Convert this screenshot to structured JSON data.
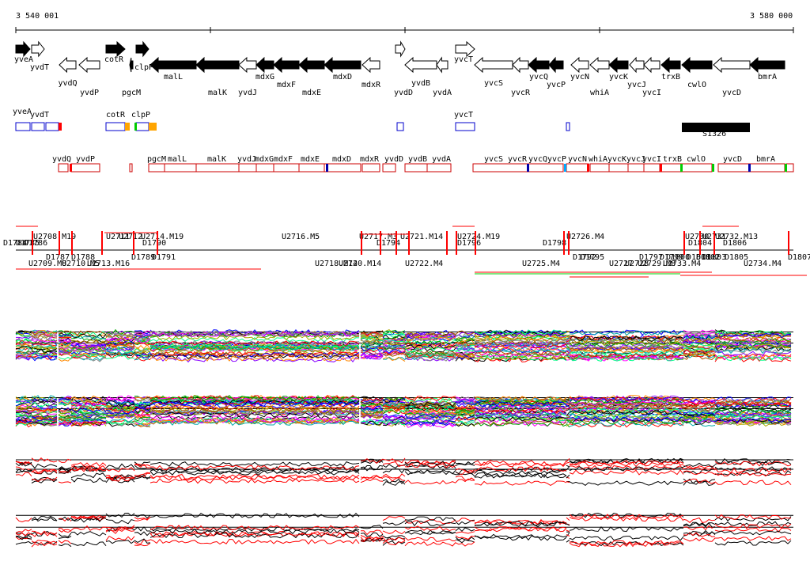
{
  "ruler": {
    "start_label": "3 540 001",
    "end_label": "3 580 000"
  },
  "colors": {
    "gene_fill": "#000000",
    "gene_outline": "#000000",
    "utr_box": "#0000cc",
    "tu_box": "#cc0000",
    "tss": "#ff0000",
    "orange": "#ffa500",
    "green": "#00cc00",
    "blue": "#0000aa",
    "cyan": "#00aaff",
    "trace_black": "#000000",
    "trace_red": "#ff0000"
  },
  "genes": [
    {
      "id": "yveA",
      "label": "yveA",
      "strand": "+",
      "filled": true
    },
    {
      "id": "yvdT",
      "label": "yvdT",
      "strand": "+",
      "filled": false
    },
    {
      "id": "yvdQ",
      "label": "yvdQ",
      "strand": "-",
      "filled": false
    },
    {
      "id": "yvdP",
      "label": "yvdP",
      "strand": "-",
      "filled": false
    },
    {
      "id": "cotR",
      "label": "cotR",
      "strand": "+",
      "filled": true
    },
    {
      "id": "clpP",
      "label": "clpP",
      "strand": "+",
      "filled": true
    },
    {
      "id": "malL",
      "label": "malL",
      "strand": "-",
      "filled": true
    },
    {
      "id": "pgcM",
      "label": "pgcM",
      "strand": "-",
      "filled": true
    },
    {
      "id": "malK",
      "label": "malK",
      "strand": "-",
      "filled": true
    },
    {
      "id": "yvdJ",
      "label": "yvdJ",
      "strand": "-",
      "filled": false
    },
    {
      "id": "mdxG",
      "label": "mdxG",
      "strand": "-",
      "filled": true
    },
    {
      "id": "mdxF",
      "label": "mdxF",
      "strand": "-",
      "filled": true
    },
    {
      "id": "mdxE",
      "label": "mdxE",
      "strand": "-",
      "filled": true
    },
    {
      "id": "mdxD",
      "label": "mdxD",
      "strand": "-",
      "filled": true
    },
    {
      "id": "mdxR",
      "label": "mdxR",
      "strand": "-",
      "filled": false
    },
    {
      "id": "yvdD",
      "label": "yvdD",
      "strand": "+",
      "filled": false
    },
    {
      "id": "yvdB",
      "label": "yvdB",
      "strand": "-",
      "filled": false
    },
    {
      "id": "yvdA",
      "label": "yvdA",
      "strand": "-",
      "filled": false
    },
    {
      "id": "yvcT",
      "label": "yvcT",
      "strand": "+",
      "filled": false
    },
    {
      "id": "yvcS",
      "label": "yvcS",
      "strand": "-",
      "filled": false
    },
    {
      "id": "yvcR",
      "label": "yvcR",
      "strand": "-",
      "filled": false
    },
    {
      "id": "yvcQ",
      "label": "yvcQ",
      "strand": "-",
      "filled": true
    },
    {
      "id": "yvcP",
      "label": "yvcP",
      "strand": "-",
      "filled": true
    },
    {
      "id": "yvcN",
      "label": "yvcN",
      "strand": "-",
      "filled": false
    },
    {
      "id": "whiA",
      "label": "whiA",
      "strand": "-",
      "filled": false
    },
    {
      "id": "yvcK",
      "label": "yvcK",
      "strand": "-",
      "filled": true
    },
    {
      "id": "yvcJ",
      "label": "yvcJ",
      "strand": "-",
      "filled": false
    },
    {
      "id": "yvcI",
      "label": "yvcI",
      "strand": "-",
      "filled": false
    },
    {
      "id": "trxB",
      "label": "trxB",
      "strand": "-",
      "filled": true
    },
    {
      "id": "cwlO",
      "label": "cwlO",
      "strand": "-",
      "filled": true
    },
    {
      "id": "yvcD",
      "label": "yvcD",
      "strand": "-",
      "filled": false
    },
    {
      "id": "bmrA",
      "label": "bmrA",
      "strand": "-",
      "filled": true
    }
  ],
  "utr_labels": [
    "yveA",
    "yvdT",
    "cotR",
    "clpP",
    "yvcT",
    "S1326"
  ],
  "tu_labels": [
    "yvdQ",
    "yvdP",
    "pgcM",
    "malL",
    "malK",
    "yvdJ",
    "mdxG",
    "mdxF",
    "mdxE",
    "mdxD",
    "mdxR",
    "yvdD",
    "yvdB",
    "yvdA",
    "yvcS",
    "yvcR",
    "yvcQ",
    "yvcP",
    "yvcN",
    "whiA",
    "yvcK",
    "yvcJ",
    "yvcI",
    "trxB",
    "cwlO",
    "yvcD",
    "bmrA"
  ],
  "segments_top": [
    "U2708.M19",
    "U2711",
    "U2712",
    "U2714.M19",
    "U2716.M5",
    "U2717.M3",
    "U2721.M14",
    "U2724.M19",
    "U2726.M4",
    "U2730",
    "U2731",
    "U2732.M13",
    "D1784",
    "D1785",
    "D1786",
    "D1790",
    "D1794",
    "D1796",
    "D1798",
    "D1804",
    "D1806"
  ],
  "segments_bottom": [
    "U2709.M8",
    "U2710.M5",
    "U2713.M16",
    "U2718.M14",
    "U2720.M14",
    "U2722.M4",
    "U2725.M4",
    "U2727",
    "U2728",
    "U2729.M8",
    "U2733.M4",
    "U2734.M4",
    "D1787",
    "D1788",
    "D1789",
    "D1791",
    "D1792",
    "D1795",
    "D1797",
    "D1799",
    "D1800",
    "D1801",
    "D1802",
    "D1803",
    "D1805",
    "D1807"
  ]
}
